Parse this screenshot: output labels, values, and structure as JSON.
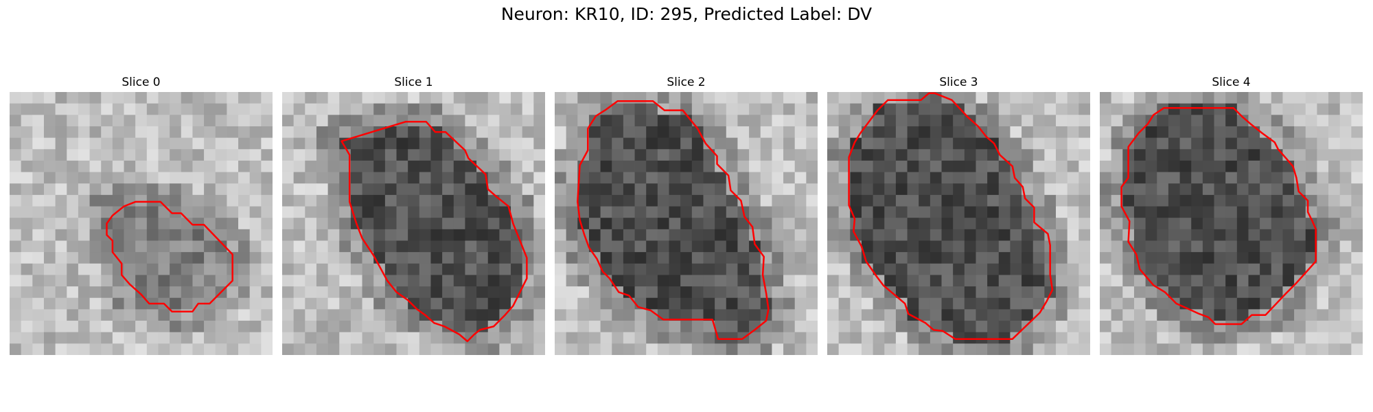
{
  "figure": {
    "title": "Neuron: KR10, ID: 295, Predicted Label: DV"
  },
  "slices": [
    {
      "title": "Slice 0",
      "contour": [
        [
          11,
          9.6
        ],
        [
          13.2,
          9.6
        ],
        [
          14.2,
          10.6
        ],
        [
          15,
          10.6
        ],
        [
          16,
          11.6
        ],
        [
          17,
          11.6
        ],
        [
          19.5,
          14.2
        ],
        [
          19.5,
          16.5
        ],
        [
          17.5,
          18.5
        ],
        [
          16.5,
          18.5
        ],
        [
          16,
          19.2
        ],
        [
          14.2,
          19.2
        ],
        [
          13.5,
          18.5
        ],
        [
          12.2,
          18.5
        ],
        [
          11.5,
          17.7
        ],
        [
          10.5,
          16.8
        ],
        [
          9.8,
          16
        ],
        [
          9.8,
          15
        ],
        [
          9,
          14
        ],
        [
          9,
          13
        ],
        [
          8.5,
          12.5
        ],
        [
          8.5,
          11.5
        ],
        [
          9,
          10.8
        ],
        [
          10,
          10
        ]
      ]
    },
    {
      "title": "Slice 1",
      "contour": [
        [
          10.8,
          2.6
        ],
        [
          12.6,
          2.6
        ],
        [
          13.4,
          3.5
        ],
        [
          14.3,
          3.5
        ],
        [
          16,
          5.1
        ],
        [
          16.3,
          5.8
        ],
        [
          17.8,
          7.2
        ],
        [
          18,
          8.5
        ],
        [
          18.8,
          9.2
        ],
        [
          19.8,
          10
        ],
        [
          20.2,
          11.5
        ],
        [
          20.8,
          13
        ],
        [
          21.4,
          14.5
        ],
        [
          21.4,
          16.3
        ],
        [
          20.8,
          17.5
        ],
        [
          20.2,
          18.7
        ],
        [
          19.5,
          19.5
        ],
        [
          18.5,
          20.5
        ],
        [
          17.3,
          20.8
        ],
        [
          16.8,
          21.2
        ],
        [
          16.2,
          21.8
        ],
        [
          15.5,
          21.2
        ],
        [
          14.2,
          20.5
        ],
        [
          13.3,
          20.2
        ],
        [
          12.5,
          19.5
        ],
        [
          11.8,
          19
        ],
        [
          11,
          18.2
        ],
        [
          10,
          17.5
        ],
        [
          9.2,
          16.5
        ],
        [
          8,
          14.3
        ],
        [
          7,
          12.8
        ],
        [
          6.5,
          11.5
        ],
        [
          5.9,
          9.6
        ],
        [
          5.9,
          5.5
        ],
        [
          5.2,
          4.3
        ]
      ]
    },
    {
      "title": "Slice 2",
      "contour": [
        [
          5.5,
          0.8
        ],
        [
          8.6,
          0.8
        ],
        [
          9.6,
          1.6
        ],
        [
          11.2,
          1.6
        ],
        [
          12.5,
          3.2
        ],
        [
          13.2,
          4.5
        ],
        [
          14.2,
          5.6
        ],
        [
          14.2,
          6.3
        ],
        [
          15.2,
          7.3
        ],
        [
          15.4,
          8.6
        ],
        [
          16.3,
          9.5
        ],
        [
          16.6,
          10.9
        ],
        [
          17.3,
          11.8
        ],
        [
          17.5,
          13.3
        ],
        [
          18.3,
          14.4
        ],
        [
          18.2,
          16
        ],
        [
          18.5,
          17.6
        ],
        [
          18.7,
          19
        ],
        [
          18.5,
          20
        ],
        [
          17.5,
          20.8
        ],
        [
          16.4,
          21.6
        ],
        [
          14.3,
          21.6
        ],
        [
          13.8,
          19.9
        ],
        [
          9.5,
          19.9
        ],
        [
          8.4,
          19.1
        ],
        [
          7.3,
          18.8
        ],
        [
          6.5,
          17.8
        ],
        [
          5.6,
          17.5
        ],
        [
          4.8,
          16.3
        ],
        [
          4.2,
          15.7
        ],
        [
          3.7,
          14.6
        ],
        [
          3,
          13.6
        ],
        [
          2.6,
          12.5
        ],
        [
          2.2,
          11.2
        ],
        [
          2,
          9.6
        ],
        [
          2.2,
          6.4
        ],
        [
          2.9,
          5.1
        ],
        [
          2.9,
          3.2
        ],
        [
          3.6,
          2.1
        ],
        [
          4.4,
          1.6
        ]
      ]
    },
    {
      "title": "Slice 3",
      "contour": [
        [
          5.3,
          0.7
        ],
        [
          8.2,
          0.7
        ],
        [
          8.9,
          0.1
        ],
        [
          9.4,
          0.1
        ],
        [
          10.9,
          0.7
        ],
        [
          12.3,
          2.2
        ],
        [
          13.2,
          3
        ],
        [
          13.9,
          3.9
        ],
        [
          14.6,
          4.5
        ],
        [
          15.1,
          5.5
        ],
        [
          16.2,
          6.5
        ],
        [
          16.4,
          7.5
        ],
        [
          17.1,
          8.3
        ],
        [
          17.3,
          9.3
        ],
        [
          18.1,
          10.1
        ],
        [
          18.1,
          11.4
        ],
        [
          19.3,
          12.4
        ],
        [
          19.5,
          13.4
        ],
        [
          19.5,
          16
        ],
        [
          19.7,
          17.3
        ],
        [
          19.2,
          18.3
        ],
        [
          18.6,
          19.3
        ],
        [
          16.2,
          21.6
        ],
        [
          11.2,
          21.6
        ],
        [
          10.1,
          20.9
        ],
        [
          9.3,
          20.8
        ],
        [
          8.6,
          20.2
        ],
        [
          7.1,
          19.4
        ],
        [
          6.8,
          18.5
        ],
        [
          4.9,
          16.9
        ],
        [
          4.3,
          16.1
        ],
        [
          3.4,
          14.8
        ],
        [
          3,
          13.5
        ],
        [
          2.3,
          12.2
        ],
        [
          2.4,
          11.1
        ],
        [
          1.9,
          9.9
        ],
        [
          1.9,
          5.7
        ],
        [
          2.4,
          4.4
        ],
        [
          2.9,
          3.6
        ],
        [
          4.4,
          1.6
        ]
      ]
    },
    {
      "title": "Slice 4",
      "contour": [
        [
          5.6,
          1.4
        ],
        [
          11.7,
          1.4
        ],
        [
          12.5,
          2.2
        ],
        [
          13.2,
          2.8
        ],
        [
          14.2,
          3.6
        ],
        [
          15.3,
          4.4
        ],
        [
          15.6,
          5
        ],
        [
          16.3,
          5.8
        ],
        [
          16.9,
          6.5
        ],
        [
          17.2,
          7.5
        ],
        [
          17.4,
          8.7
        ],
        [
          18.2,
          9.5
        ],
        [
          18.2,
          10.5
        ],
        [
          18.6,
          11.3
        ],
        [
          18.9,
          12
        ],
        [
          18.9,
          14.8
        ],
        [
          17.2,
          16.7
        ],
        [
          16.3,
          17.6
        ],
        [
          14.5,
          19.5
        ],
        [
          13.3,
          19.5
        ],
        [
          12.4,
          20.3
        ],
        [
          10.1,
          20.3
        ],
        [
          9.5,
          19.7
        ],
        [
          8.7,
          19.4
        ],
        [
          7.6,
          18.9
        ],
        [
          6.7,
          18.5
        ],
        [
          5.7,
          17.5
        ],
        [
          4.7,
          16.9
        ],
        [
          3.5,
          15.5
        ],
        [
          3.2,
          14.2
        ],
        [
          2.5,
          13.1
        ],
        [
          2.6,
          11.3
        ],
        [
          1.9,
          10
        ],
        [
          1.9,
          8.3
        ],
        [
          2.5,
          7.5
        ],
        [
          2.5,
          4.8
        ],
        [
          3.4,
          3.6
        ],
        [
          4.2,
          2.8
        ],
        [
          4.7,
          2
        ]
      ]
    }
  ],
  "palette": {
    "contour": "#ff0000",
    "background": "#ffffff"
  }
}
